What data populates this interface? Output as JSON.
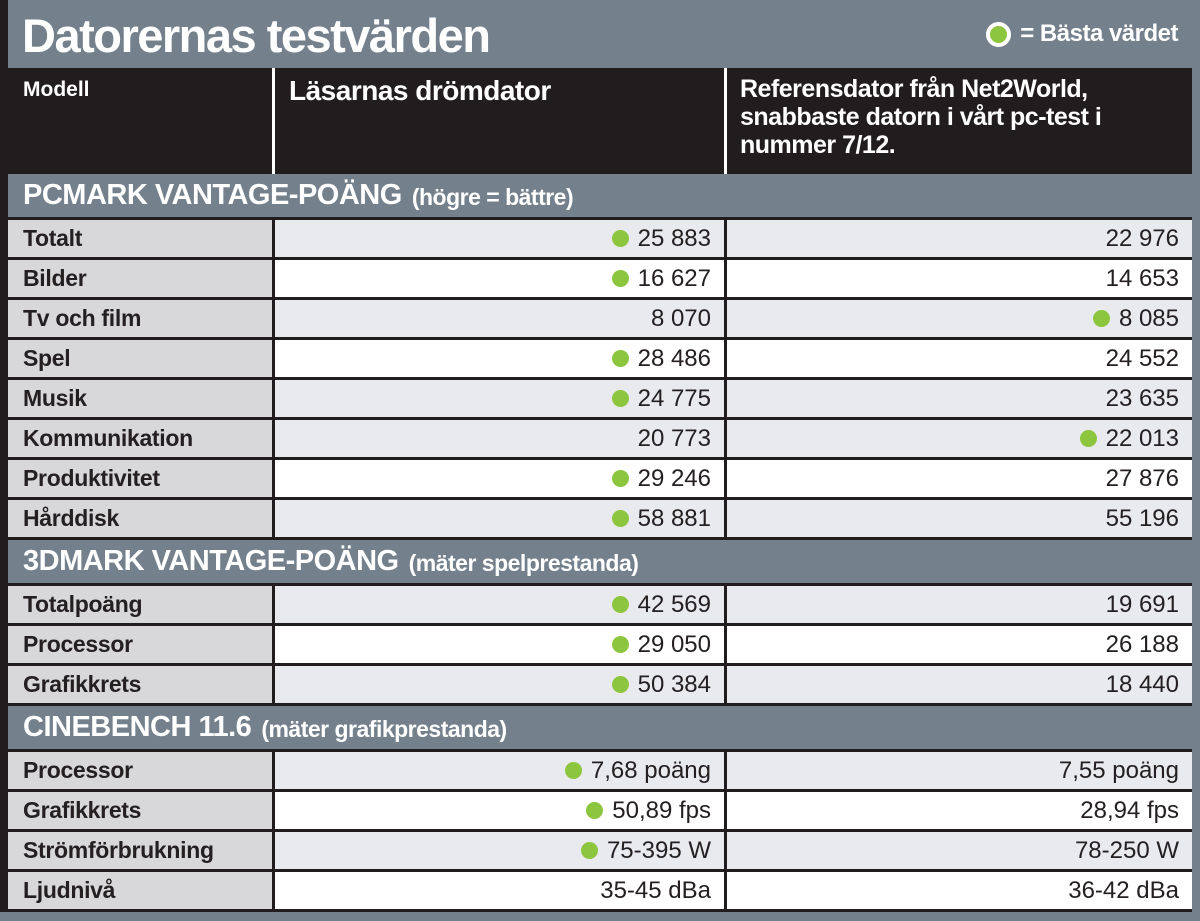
{
  "header": {
    "title": "Datorernas testvärden",
    "legend_label": "= Bästa värdet"
  },
  "colors": {
    "slate_background": "#74808c",
    "header_black": "#211d1e",
    "best_value_green": "#8cc63e",
    "label_column_gray": "#d8d8da",
    "stripe_gray": "#e9eaee",
    "stripe_white": "#ffffff"
  },
  "chart_data": {
    "type": "table",
    "title": "Datorernas testvärden",
    "legend": "● = Bästa värdet",
    "columns": [
      "Modell",
      "Läsarnas drömdator",
      "Referensdator från Net2World,\nsnabbaste datorn i vårt pc-test i\nnummer 7/12."
    ],
    "sections": [
      {
        "title": "PCMARK VANTAGE-POÄNG",
        "note": "(högre = bättre)",
        "rows": [
          {
            "label": "Totalt",
            "dream": "25 883",
            "dream_best": true,
            "ref": "22 976",
            "ref_best": false,
            "shade": "gray"
          },
          {
            "label": "Bilder",
            "dream": "16 627",
            "dream_best": true,
            "ref": "14 653",
            "ref_best": false,
            "shade": "white"
          },
          {
            "label": "Tv och film",
            "dream": "8 070",
            "dream_best": false,
            "ref": "8 085",
            "ref_best": true,
            "shade": "gray"
          },
          {
            "label": "Spel",
            "dream": "28 486",
            "dream_best": true,
            "ref": "24 552",
            "ref_best": false,
            "shade": "white"
          },
          {
            "label": "Musik",
            "dream": "24 775",
            "dream_best": true,
            "ref": "23 635",
            "ref_best": false,
            "shade": "gray"
          },
          {
            "label": "Kommunikation",
            "dream": "20 773",
            "dream_best": false,
            "ref": "22 013",
            "ref_best": true,
            "shade": "gray"
          },
          {
            "label": "Produktivitet",
            "dream": "29 246",
            "dream_best": true,
            "ref": "27 876",
            "ref_best": false,
            "shade": "white"
          },
          {
            "label": "Hårddisk",
            "dream": "58 881",
            "dream_best": true,
            "ref": "55 196",
            "ref_best": false,
            "shade": "gray"
          }
        ]
      },
      {
        "title": "3DMARK VANTAGE-POÄNG",
        "note": "(mäter spelprestanda)",
        "rows": [
          {
            "label": "Totalpoäng",
            "dream": "42 569",
            "dream_best": true,
            "ref": "19 691",
            "ref_best": false,
            "shade": "gray"
          },
          {
            "label": "Processor",
            "dream": "29 050",
            "dream_best": true,
            "ref": "26 188",
            "ref_best": false,
            "shade": "white"
          },
          {
            "label": "Grafikkrets",
            "dream": "50 384",
            "dream_best": true,
            "ref": "18 440",
            "ref_best": false,
            "shade": "gray"
          }
        ]
      },
      {
        "title": "CINEBENCH 11.6",
        "note": "(mäter grafikprestanda)",
        "rows": [
          {
            "label": "Processor",
            "dream": "7,68 poäng",
            "dream_best": true,
            "ref": "7,55 poäng",
            "ref_best": false,
            "shade": "gray"
          },
          {
            "label": "Grafikkrets",
            "dream": "50,89 fps",
            "dream_best": true,
            "ref": "28,94 fps",
            "ref_best": false,
            "shade": "white"
          },
          {
            "label": "Strömförbrukning",
            "dream": "75-395 W",
            "dream_best": true,
            "ref": "78-250 W",
            "ref_best": false,
            "shade": "gray"
          },
          {
            "label": "Ljudnivå",
            "dream": "35-45 dBa",
            "dream_best": false,
            "ref": "36-42 dBa",
            "ref_best": false,
            "shade": "white"
          }
        ]
      }
    ]
  }
}
